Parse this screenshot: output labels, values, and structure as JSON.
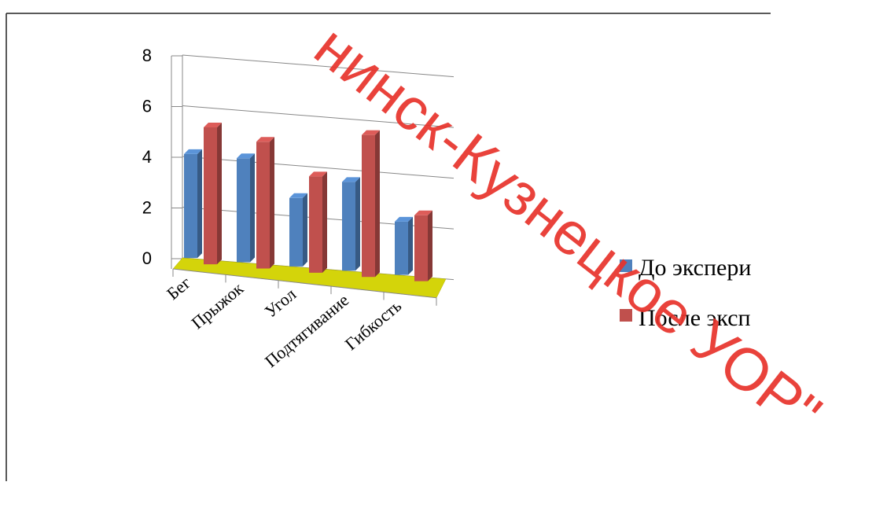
{
  "chart_data": {
    "type": "bar",
    "title": "",
    "xlabel": "",
    "ylabel": "",
    "categories": [
      "Бег",
      "Прыжок",
      "Угол",
      "Подтягивание",
      "Гибкость"
    ],
    "series": [
      {
        "name": "До экспери",
        "values": [
          4.1,
          4.1,
          2.7,
          3.5,
          2.1
        ],
        "color": "#4f81bd"
      },
      {
        "name": "После эксп",
        "values": [
          5.4,
          5.0,
          3.8,
          5.6,
          2.6
        ],
        "color": "#c0504d"
      }
    ],
    "ylim": [
      0,
      8
    ],
    "yticks": [
      0,
      2,
      4,
      6,
      8
    ],
    "grid": true,
    "legend_position": "right",
    "floor_color": "#d4d40a"
  },
  "watermark": {
    "text": "нинск-Кузнецкое УОР\"",
    "color": "#e8322b"
  }
}
